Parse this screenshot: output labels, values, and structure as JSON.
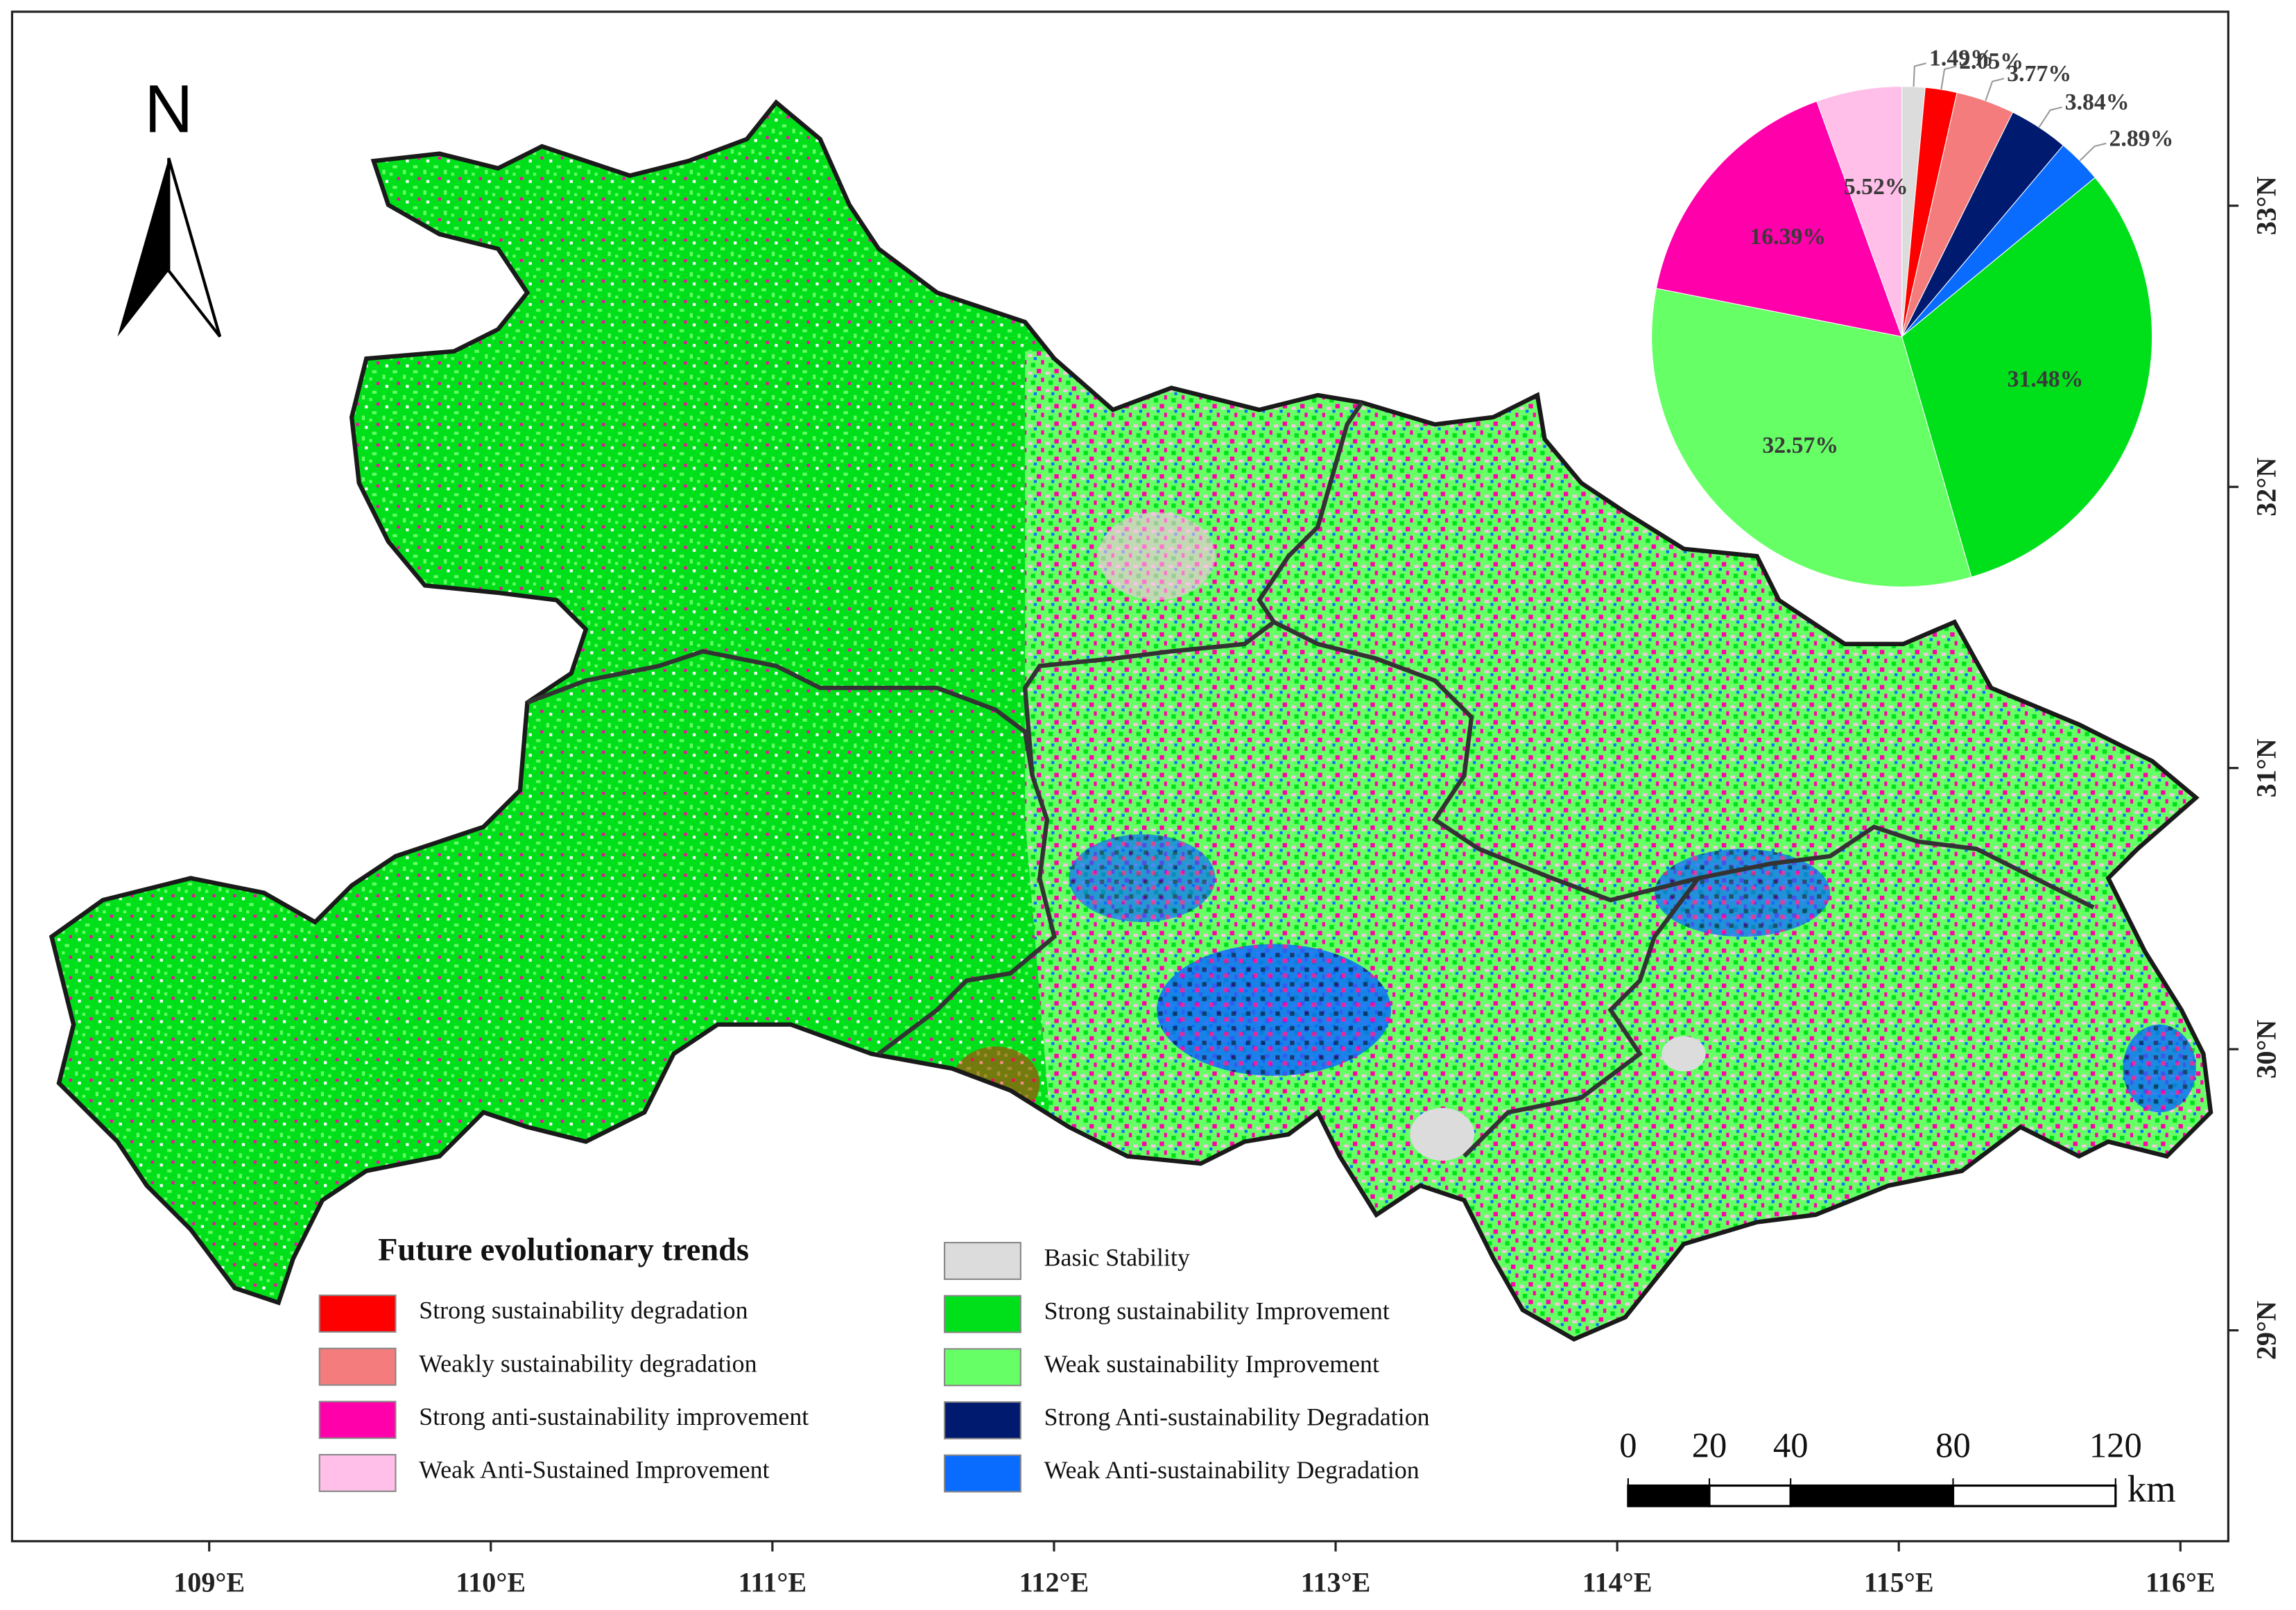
{
  "map": {
    "north_label": "N",
    "xlim": [
      108.3,
      116.17
    ],
    "xticks": [
      {
        "value": 109,
        "label": "109°E"
      },
      {
        "value": 110,
        "label": "110°E"
      },
      {
        "value": 111,
        "label": "111°E"
      },
      {
        "value": 112,
        "label": "112°E"
      },
      {
        "value": 113,
        "label": "113°E"
      },
      {
        "value": 114,
        "label": "114°E"
      },
      {
        "value": 115,
        "label": "115°E"
      },
      {
        "value": 116,
        "label": "116°E"
      }
    ],
    "ylim": [
      28.25,
      33.69
    ],
    "yticks": [
      {
        "value": 29,
        "label": "29°N"
      },
      {
        "value": 30,
        "label": "30°N"
      },
      {
        "value": 31,
        "label": "31°N"
      },
      {
        "value": 32,
        "label": "32°N"
      },
      {
        "value": 33,
        "label": "33°N"
      }
    ],
    "legend_title": "Future evolutionary trends",
    "scale_bar": {
      "ticks": [
        0,
        20,
        40,
        80,
        120
      ],
      "unit": "km"
    }
  },
  "chart_data": {
    "type": "pie",
    "categories": [
      "Basic Stability",
      "Strong sustainability degradation",
      "Weakly sustainability degradation",
      "Strong Anti-sustainability Degradation",
      "Weak Anti-sustainability Degradation",
      "Strong sustainability Improvement",
      "Weak sustainability Improvement",
      "Strong anti-sustainability improvement",
      "Weak Anti-Sustained Improvement"
    ],
    "values": [
      1.49,
      2.05,
      3.77,
      3.84,
      2.89,
      31.48,
      32.57,
      16.39,
      5.52
    ],
    "value_labels": [
      "1.49%",
      "2.05%",
      "3.77%",
      "3.84%",
      "2.89%",
      "31.48%",
      "32.57%",
      "16.39%",
      "5.52%"
    ],
    "colors": [
      "#dcdcdc",
      "#ff0000",
      "#f47c7c",
      "#001a70",
      "#0a6cff",
      "#00e01a",
      "#66ff66",
      "#ff00aa",
      "#ffbfe8"
    ]
  }
}
